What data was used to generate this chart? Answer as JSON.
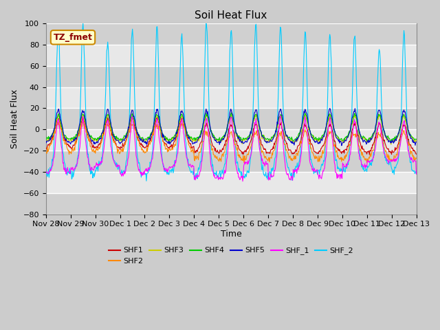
{
  "title": "Soil Heat Flux",
  "ylabel": "Soil Heat Flux",
  "xlabel": "Time",
  "ylim": [
    -80,
    100
  ],
  "series_colors": {
    "SHF1": "#cc0000",
    "SHF2": "#ff8800",
    "SHF3": "#cccc00",
    "SHF4": "#00cc00",
    "SHF5": "#0000cc",
    "SHF_1": "#ff00ff",
    "SHF_2": "#00ccff"
  },
  "xtick_labels": [
    "Nov 28",
    "Nov 29",
    "Nov 30",
    "Dec 1",
    "Dec 2",
    "Dec 3",
    "Dec 4",
    "Dec 5",
    "Dec 6",
    "Dec 7",
    "Dec 8",
    "Dec 9",
    "Dec 10",
    "Dec 11",
    "Dec 12",
    "Dec 13"
  ],
  "annotation_text": "TZ_fmet",
  "bg_color": "#cccccc",
  "plot_bg_light": "#e8e8e8",
  "plot_bg_dark": "#d0d0d0",
  "grid_color": "#ffffff",
  "title_fontsize": 11,
  "label_fontsize": 9,
  "tick_fontsize": 8
}
